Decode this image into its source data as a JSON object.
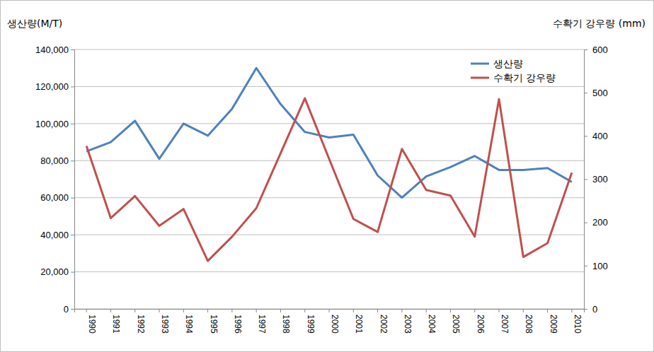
{
  "chart_data": {
    "type": "line",
    "y_label": "생산량(M/T)",
    "y2_label": "수확기 강우량 (mm)",
    "categories": [
      "1990",
      "1991",
      "1992",
      "1993",
      "1994",
      "1995",
      "1996",
      "1997",
      "1998",
      "1999",
      "2000",
      "2001",
      "2002",
      "2003",
      "2004",
      "2005",
      "2006",
      "2007",
      "2008",
      "2009",
      "2010"
    ],
    "series": [
      {
        "name": "생산량",
        "color": "#4f81bd",
        "values": [
          85000,
          90000,
          101500,
          81000,
          100000,
          93500,
          108000,
          130000,
          110500,
          95500,
          92500,
          94000,
          72000,
          60000,
          71500,
          76500,
          82500,
          75000,
          75000,
          76000,
          68500
        ]
      },
      {
        "name": "수확기 강우량",
        "color": "#c0504d",
        "axis": "y2",
        "values": [
          377,
          210,
          261,
          192,
          231,
          111,
          167,
          233,
          360,
          487,
          347,
          208,
          178,
          370,
          275,
          262,
          167,
          485,
          120,
          152,
          315
        ]
      }
    ],
    "ylim": [
      0,
      140000
    ],
    "yticks": [
      0,
      {
        "value": 20000,
        "label": "20,000"
      },
      {
        "value": 40000,
        "label": "40,000"
      },
      {
        "value": 60000,
        "label": "60,000"
      },
      {
        "value": 80000,
        "label": "80,000"
      },
      {
        "value": 100000,
        "label": "100,000"
      },
      {
        "value": 120000,
        "label": "120,000"
      },
      {
        "value": 140000,
        "label": "140,000"
      }
    ],
    "y2lim": [
      0,
      600
    ],
    "y2ticks": [
      0,
      100,
      200,
      300,
      400,
      500,
      600
    ],
    "grid": true,
    "legend": "upper right"
  }
}
